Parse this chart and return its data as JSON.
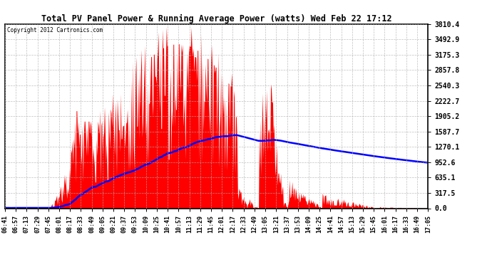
{
  "title": "Total PV Panel Power & Running Average Power (watts) Wed Feb 22 17:12",
  "copyright": "Copyright 2012 Cartronics.com",
  "background_color": "#ffffff",
  "plot_bg_color": "#ffffff",
  "bar_color": "#ff0000",
  "line_color": "#0000ff",
  "grid_color": "#b0b0b0",
  "yticks": [
    0.0,
    317.5,
    635.1,
    952.6,
    1270.1,
    1587.7,
    1905.2,
    2222.7,
    2540.3,
    2857.8,
    3175.3,
    3492.9,
    3810.4
  ],
  "ymax": 3810.4,
  "ymin": 0.0,
  "xtick_labels": [
    "06:41",
    "06:57",
    "07:13",
    "07:29",
    "07:45",
    "08:01",
    "08:17",
    "08:33",
    "08:49",
    "09:05",
    "09:21",
    "09:37",
    "09:53",
    "10:09",
    "10:25",
    "10:41",
    "10:57",
    "11:13",
    "11:29",
    "11:45",
    "12:01",
    "12:17",
    "12:33",
    "12:49",
    "13:05",
    "13:21",
    "13:37",
    "13:53",
    "14:09",
    "14:25",
    "14:41",
    "14:57",
    "15:13",
    "15:29",
    "15:45",
    "16:01",
    "16:17",
    "16:33",
    "16:49",
    "17:05"
  ]
}
